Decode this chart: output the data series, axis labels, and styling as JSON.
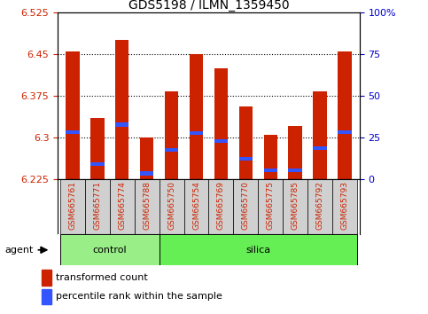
{
  "title": "GDS5198 / ILMN_1359450",
  "samples": [
    "GSM665761",
    "GSM665771",
    "GSM665774",
    "GSM665788",
    "GSM665750",
    "GSM665754",
    "GSM665769",
    "GSM665770",
    "GSM665775",
    "GSM665785",
    "GSM665792",
    "GSM665793"
  ],
  "groups": [
    "control",
    "control",
    "control",
    "control",
    "silica",
    "silica",
    "silica",
    "silica",
    "silica",
    "silica",
    "silica",
    "silica"
  ],
  "bar_values": [
    6.455,
    6.335,
    6.475,
    6.3,
    6.383,
    6.45,
    6.425,
    6.355,
    6.305,
    6.32,
    6.383,
    6.455
  ],
  "blue_marker": [
    6.31,
    6.252,
    6.323,
    6.235,
    6.278,
    6.308,
    6.293,
    6.262,
    6.24,
    6.24,
    6.28,
    6.31
  ],
  "ymin": 6.225,
  "ymax": 6.525,
  "y_ticks": [
    6.225,
    6.3,
    6.375,
    6.45,
    6.525
  ],
  "y_tick_labels": [
    "6.225",
    "6.3",
    "6.375",
    "6.45",
    "6.525"
  ],
  "right_y_ticks": [
    0,
    25,
    50,
    75,
    100
  ],
  "right_y_labels": [
    "0",
    "25",
    "50",
    "75",
    "100%"
  ],
  "bar_color": "#cc2200",
  "blue_color": "#3355ff",
  "control_color": "#99ee88",
  "silica_color": "#66ee55",
  "grid_lines": [
    6.3,
    6.375,
    6.45
  ],
  "axis_label_color_left": "#cc2200",
  "axis_label_color_right": "#0000cc",
  "sample_label_color": "#cc2200",
  "tick_fontsize": 8,
  "sample_fontsize": 6.5,
  "group_fontsize": 8,
  "legend_fontsize": 8,
  "title_fontsize": 10,
  "bar_width": 0.55
}
